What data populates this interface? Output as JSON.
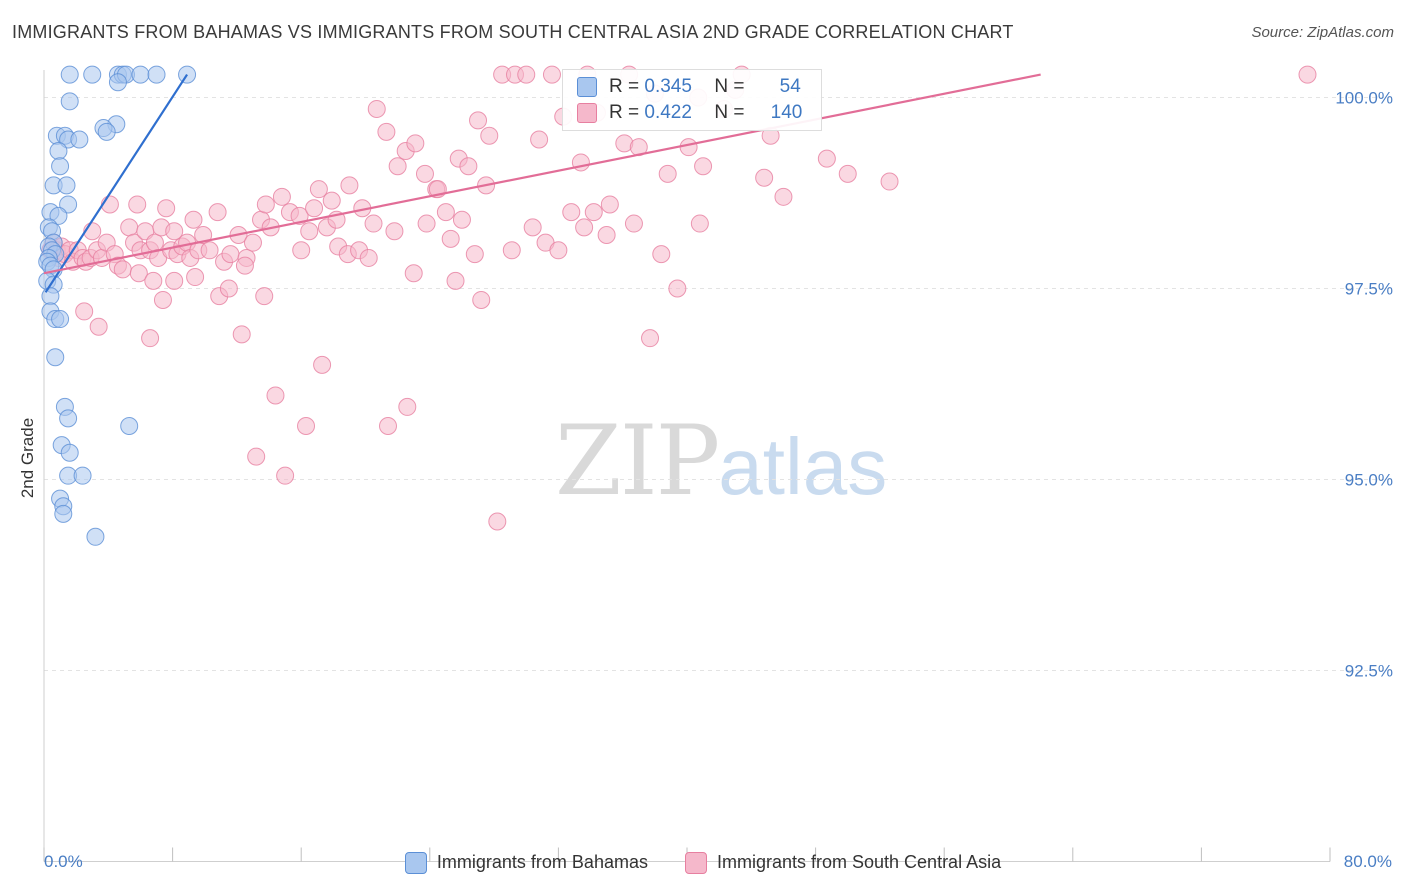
{
  "title": "IMMIGRANTS FROM BAHAMAS VS IMMIGRANTS FROM SOUTH CENTRAL ASIA 2ND GRADE CORRELATION CHART",
  "source": "Source: ZipAtlas.com",
  "watermark": {
    "zip": "ZIP",
    "atlas": "atlas"
  },
  "stats": [
    {
      "r_label": "R =",
      "r": "0.345",
      "n_label": "N =",
      "n": "54",
      "color": "#a9c7ef",
      "stroke": "#5b8fd6"
    },
    {
      "r_label": "R =",
      "r": "0.422",
      "n_label": "N =",
      "n": "140",
      "color": "#f5b8cb",
      "stroke": "#e77fa0"
    }
  ],
  "legend": [
    {
      "label": "Immigrants from Bahamas",
      "color": "#a9c7ef",
      "stroke": "#5b8fd6"
    },
    {
      "label": "Immigrants from South Central Asia",
      "color": "#f5b8cb",
      "stroke": "#e77fa0"
    }
  ],
  "chart_data": {
    "type": "scatter",
    "title": "IMMIGRANTS FROM BAHAMAS VS IMMIGRANTS FROM SOUTH CENTRAL ASIA 2ND GRADE CORRELATION CHART",
    "xlabel": "",
    "ylabel": "2nd Grade",
    "xlim": [
      0,
      80
    ],
    "ylim": [
      90.0,
      100.5
    ],
    "x_tick_labels": [
      "0.0%",
      "80.0%"
    ],
    "y_ticks": [
      92.5,
      95.0,
      97.5,
      100.0
    ],
    "y_tick_labels": [
      "92.5%",
      "95.0%",
      "97.5%",
      "100.0%"
    ],
    "grid": true,
    "series": [
      {
        "name": "Immigrants from Bahamas",
        "color": "#5b8fd6",
        "trend": {
          "x": [
            0.1,
            8.9
          ],
          "y": [
            97.45,
            100.3
          ]
        },
        "points": [
          [
            1.6,
            100.3
          ],
          [
            3.0,
            100.3
          ],
          [
            4.6,
            100.3
          ],
          [
            4.9,
            100.3
          ],
          [
            5.1,
            100.3
          ],
          [
            6.0,
            100.3
          ],
          [
            7.0,
            100.3
          ],
          [
            8.9,
            100.3
          ],
          [
            4.6,
            100.2
          ],
          [
            1.6,
            99.95
          ],
          [
            4.5,
            99.65
          ],
          [
            3.7,
            99.6
          ],
          [
            3.9,
            99.55
          ],
          [
            0.8,
            99.5
          ],
          [
            1.3,
            99.5
          ],
          [
            1.5,
            99.45
          ],
          [
            2.2,
            99.45
          ],
          [
            0.9,
            99.3
          ],
          [
            1.0,
            99.1
          ],
          [
            0.6,
            98.85
          ],
          [
            1.4,
            98.85
          ],
          [
            1.5,
            98.6
          ],
          [
            0.4,
            98.5
          ],
          [
            0.9,
            98.45
          ],
          [
            0.3,
            98.3
          ],
          [
            0.5,
            98.25
          ],
          [
            0.6,
            98.1
          ],
          [
            0.3,
            98.05
          ],
          [
            0.5,
            98.0
          ],
          [
            0.7,
            97.95
          ],
          [
            0.3,
            97.9
          ],
          [
            0.2,
            97.85
          ],
          [
            0.4,
            97.8
          ],
          [
            0.6,
            97.75
          ],
          [
            0.2,
            97.6
          ],
          [
            0.6,
            97.55
          ],
          [
            0.4,
            97.4
          ],
          [
            0.4,
            97.2
          ],
          [
            0.7,
            97.1
          ],
          [
            1.0,
            97.1
          ],
          [
            0.7,
            96.6
          ],
          [
            1.3,
            95.95
          ],
          [
            1.5,
            95.8
          ],
          [
            5.3,
            95.7
          ],
          [
            1.1,
            95.45
          ],
          [
            1.6,
            95.35
          ],
          [
            1.5,
            95.05
          ],
          [
            2.4,
            95.05
          ],
          [
            1.0,
            94.75
          ],
          [
            1.2,
            94.65
          ],
          [
            1.2,
            94.55
          ],
          [
            3.2,
            94.25
          ]
        ]
      },
      {
        "name": "Immigrants from South Central Asia",
        "color": "#e77fa0",
        "trend": {
          "x": [
            0.0,
            62.0
          ],
          "y": [
            97.7,
            100.3
          ]
        },
        "points": [
          [
            0.4,
            98.0
          ],
          [
            0.6,
            98.1
          ],
          [
            0.8,
            98.0
          ],
          [
            0.9,
            97.9
          ],
          [
            1.1,
            98.05
          ],
          [
            1.3,
            97.95
          ],
          [
            1.6,
            98.0
          ],
          [
            1.8,
            97.85
          ],
          [
            2.1,
            98.0
          ],
          [
            2.4,
            97.9
          ],
          [
            2.6,
            97.85
          ],
          [
            2.9,
            97.9
          ],
          [
            3.0,
            98.25
          ],
          [
            3.3,
            98.0
          ],
          [
            3.6,
            97.9
          ],
          [
            3.9,
            98.1
          ],
          [
            4.1,
            98.6
          ],
          [
            4.4,
            97.95
          ],
          [
            4.6,
            97.8
          ],
          [
            4.9,
            97.75
          ],
          [
            2.5,
            97.2
          ],
          [
            3.4,
            97.0
          ],
          [
            5.3,
            98.3
          ],
          [
            5.6,
            98.1
          ],
          [
            5.8,
            98.6
          ],
          [
            6.0,
            98.0
          ],
          [
            6.3,
            98.25
          ],
          [
            6.6,
            98.0
          ],
          [
            6.9,
            98.1
          ],
          [
            7.1,
            97.9
          ],
          [
            7.3,
            98.3
          ],
          [
            7.6,
            98.55
          ],
          [
            7.9,
            98.0
          ],
          [
            8.1,
            98.25
          ],
          [
            8.3,
            97.95
          ],
          [
            8.6,
            98.05
          ],
          [
            8.9,
            98.1
          ],
          [
            9.1,
            97.9
          ],
          [
            9.3,
            98.4
          ],
          [
            9.6,
            98.0
          ],
          [
            9.9,
            98.2
          ],
          [
            10.3,
            98.0
          ],
          [
            10.8,
            98.5
          ],
          [
            11.2,
            97.85
          ],
          [
            11.6,
            97.95
          ],
          [
            12.1,
            98.2
          ],
          [
            12.6,
            97.9
          ],
          [
            13.0,
            98.1
          ],
          [
            13.5,
            98.4
          ],
          [
            14.1,
            98.3
          ],
          [
            14.8,
            98.7
          ],
          [
            15.3,
            98.5
          ],
          [
            16.0,
            98.0
          ],
          [
            16.5,
            98.25
          ],
          [
            17.1,
            98.8
          ],
          [
            17.6,
            98.3
          ],
          [
            18.3,
            98.05
          ],
          [
            18.9,
            97.95
          ],
          [
            19.6,
            98.0
          ],
          [
            20.2,
            97.9
          ],
          [
            5.9,
            97.7
          ],
          [
            6.8,
            97.6
          ],
          [
            7.4,
            97.35
          ],
          [
            8.1,
            97.6
          ],
          [
            9.4,
            97.65
          ],
          [
            10.9,
            97.4
          ],
          [
            11.5,
            97.5
          ],
          [
            12.5,
            97.8
          ],
          [
            13.7,
            97.4
          ],
          [
            6.6,
            96.85
          ],
          [
            12.3,
            96.9
          ],
          [
            14.4,
            96.1
          ],
          [
            17.3,
            96.5
          ],
          [
            13.2,
            95.3
          ],
          [
            15.0,
            95.05
          ],
          [
            16.3,
            95.7
          ],
          [
            21.4,
            95.7
          ],
          [
            22.6,
            95.95
          ],
          [
            28.2,
            94.45
          ],
          [
            23.0,
            97.7
          ],
          [
            20.7,
            99.85
          ],
          [
            21.3,
            99.55
          ],
          [
            22.0,
            99.1
          ],
          [
            22.5,
            99.3
          ],
          [
            23.1,
            99.4
          ],
          [
            23.7,
            99.0
          ],
          [
            24.4,
            98.8
          ],
          [
            25.0,
            98.5
          ],
          [
            25.8,
            99.2
          ],
          [
            26.4,
            99.1
          ],
          [
            27.0,
            99.7
          ],
          [
            27.7,
            99.5
          ],
          [
            28.5,
            100.3
          ],
          [
            29.3,
            100.3
          ],
          [
            30.0,
            100.3
          ],
          [
            30.8,
            99.45
          ],
          [
            31.6,
            100.3
          ],
          [
            32.3,
            99.75
          ],
          [
            33.4,
            99.15
          ],
          [
            34.4,
            99.8
          ],
          [
            35.2,
            98.6
          ],
          [
            36.1,
            99.4
          ],
          [
            37.0,
            99.35
          ],
          [
            38.0,
            100.05
          ],
          [
            38.8,
            99.0
          ],
          [
            40.1,
            99.35
          ],
          [
            41.0,
            99.1
          ],
          [
            43.0,
            100.1
          ],
          [
            44.8,
            98.95
          ],
          [
            46.0,
            98.7
          ],
          [
            39.4,
            97.5
          ],
          [
            37.7,
            96.85
          ],
          [
            24.5,
            98.8
          ],
          [
            25.3,
            98.15
          ],
          [
            26.0,
            98.4
          ],
          [
            26.8,
            97.95
          ],
          [
            27.5,
            98.85
          ],
          [
            29.1,
            98.0
          ],
          [
            30.4,
            98.3
          ],
          [
            31.2,
            98.1
          ],
          [
            32.0,
            98.0
          ],
          [
            32.8,
            98.5
          ],
          [
            33.6,
            98.3
          ],
          [
            34.2,
            98.5
          ],
          [
            35.0,
            98.2
          ],
          [
            36.7,
            98.35
          ],
          [
            38.4,
            97.95
          ],
          [
            40.8,
            98.35
          ],
          [
            18.2,
            98.4
          ],
          [
            19.0,
            98.85
          ],
          [
            13.8,
            98.6
          ],
          [
            15.9,
            98.45
          ],
          [
            16.8,
            98.55
          ],
          [
            17.9,
            98.65
          ],
          [
            19.8,
            98.55
          ],
          [
            20.5,
            98.35
          ],
          [
            21.8,
            98.25
          ],
          [
            23.8,
            98.35
          ],
          [
            25.6,
            97.6
          ],
          [
            27.2,
            97.35
          ],
          [
            33.8,
            100.3
          ],
          [
            36.4,
            100.3
          ],
          [
            43.4,
            100.3
          ],
          [
            78.6,
            100.3
          ],
          [
            40.7,
            100.0
          ],
          [
            42.3,
            99.85
          ],
          [
            45.2,
            99.5
          ],
          [
            48.7,
            99.2
          ],
          [
            50.0,
            99.0
          ],
          [
            52.6,
            98.9
          ]
        ]
      }
    ]
  }
}
